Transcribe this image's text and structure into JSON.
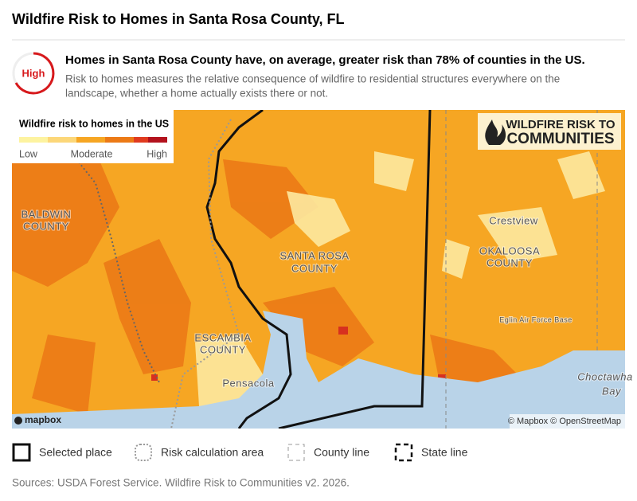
{
  "header": {
    "title": "Wildfire Risk to Homes in Santa Rosa County, FL"
  },
  "summary": {
    "badge": "High",
    "headline": "Homes in Santa Rosa County have, on average, greater risk than 78% of counties in the US.",
    "description": [
      "Risk to homes measures the relative consequence of wildfire to residential structures everywhere on the",
      "landscape, whether a home actually exists there or not."
    ]
  },
  "legend": {
    "title": "Wildfire risk to homes in the US",
    "labels": [
      "Low",
      "Moderate",
      "High"
    ]
  },
  "logo": [
    "WILDFIRE RISK TO",
    "COMMUNITIES"
  ],
  "map_labels": {
    "baldwin": [
      "BALDWIN",
      "COUNTY"
    ],
    "santa_rosa": [
      "SANTA ROSA",
      "COUNTY"
    ],
    "escambia": [
      "ESCAMBIA",
      "COUNTY"
    ],
    "pensacola": "Pensacola",
    "crestview": "Crestview",
    "okaloosa": [
      "OKALOOSA",
      "COUNTY"
    ],
    "eglin": "Eglin Air Force Base",
    "bay": [
      "Choctawha",
      "Bay"
    ]
  },
  "attribution": {
    "mapbox": "mapbox",
    "copyright": "© Mapbox © OpenStreetMap"
  },
  "key": [
    "Selected place",
    "Risk calculation area",
    "County line",
    "State line"
  ],
  "sources": "Sources: USDA Forest Service. Wildfire Risk to Communities v2. 2026."
}
